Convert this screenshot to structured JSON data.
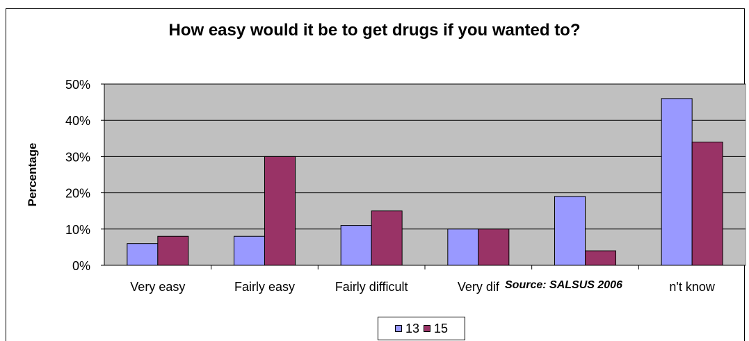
{
  "chart_data": {
    "type": "bar",
    "title": "How easy would it be to get drugs if you wanted to?",
    "ylabel": "Percentage",
    "xlabel": "",
    "ylim": [
      0,
      50
    ],
    "yticks": [
      "0%",
      "10%",
      "20%",
      "30%",
      "40%",
      "50%"
    ],
    "categories": [
      "Very easy",
      "Fairly easy",
      "Fairly difficult",
      "Very dif",
      "",
      "n't know"
    ],
    "series": [
      {
        "name": "13",
        "values": [
          6,
          8,
          11,
          10,
          19,
          46
        ],
        "color": "#9999FF"
      },
      {
        "name": "15",
        "values": [
          8,
          30,
          15,
          10,
          4,
          34
        ],
        "color": "#993366"
      }
    ],
    "grid": true,
    "plot_background": "#C0C0C0",
    "legend_position": "bottom"
  },
  "source_note": "Source: SALSUS 2006"
}
